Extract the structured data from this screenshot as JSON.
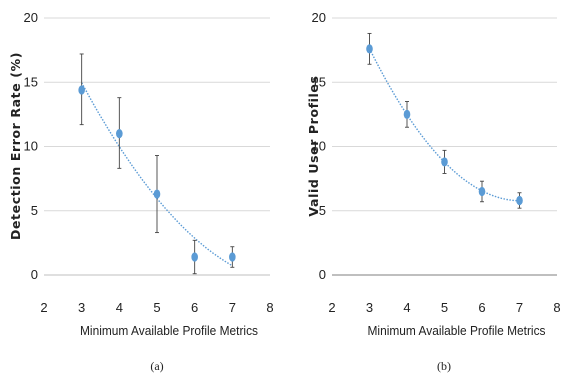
{
  "chart_data": [
    {
      "type": "scatter",
      "caption": "(a)",
      "xlabel": "Minimum Available Profile Metrics",
      "ylabel": "Detection Error Rate (%)",
      "xlim": [
        2,
        8
      ],
      "ylim": [
        0,
        20
      ],
      "xticks": [
        2,
        3,
        4,
        5,
        6,
        7,
        8
      ],
      "yticks": [
        0,
        5,
        10,
        15,
        20
      ],
      "grid": true,
      "trendline": "polynomial (dotted)",
      "series": [
        {
          "x": [
            3,
            4,
            5,
            6,
            7
          ],
          "y": [
            14.4,
            11.0,
            6.3,
            1.4,
            1.4
          ],
          "err_low": [
            11.7,
            8.3,
            3.3,
            0.1,
            0.6
          ],
          "err_high": [
            17.2,
            13.8,
            9.3,
            2.7,
            2.2
          ]
        }
      ]
    },
    {
      "type": "scatter",
      "caption": "(b)",
      "xlabel": "Minimum Available Profile Metrics",
      "ylabel": "Valid User Profiles",
      "xlim": [
        2,
        8
      ],
      "ylim": [
        0,
        20
      ],
      "xticks": [
        2,
        3,
        4,
        5,
        6,
        7,
        8
      ],
      "yticks": [
        0,
        5,
        10,
        15,
        20
      ],
      "grid": true,
      "trendline": "polynomial (dotted)",
      "series": [
        {
          "x": [
            3,
            4,
            5,
            6,
            7
          ],
          "y": [
            17.6,
            12.5,
            8.8,
            6.5,
            5.8
          ],
          "err_low": [
            16.4,
            11.5,
            7.9,
            5.7,
            5.2
          ],
          "err_high": [
            18.8,
            13.5,
            9.7,
            7.3,
            6.4
          ]
        }
      ]
    }
  ],
  "colors": {
    "marker": "#5b9bd5",
    "trendline": "#5b9bd5",
    "errorbar": "#444444",
    "grid": "#d9d9d9",
    "axis": "#bfbfbf"
  }
}
